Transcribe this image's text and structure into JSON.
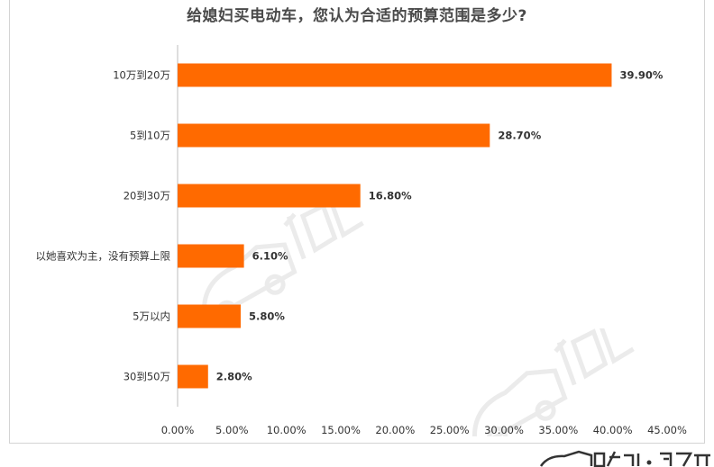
{
  "chart_data": {
    "type": "bar",
    "orientation": "horizontal",
    "title": "给媳妇买电动车，您认为合适的预算范围是多少?",
    "categories": [
      "10万到20万",
      "5到10万",
      "20到30万",
      "以她喜欢为主，没有预算上限",
      "5万以内",
      "30到50万"
    ],
    "values": [
      39.9,
      28.7,
      16.8,
      6.1,
      5.8,
      2.8
    ],
    "value_labels": [
      "39.90%",
      "28.70%",
      "16.80%",
      "6.10%",
      "5.80%",
      "2.80%"
    ],
    "xlim": [
      0,
      45
    ],
    "xticks": [
      0,
      5,
      10,
      15,
      20,
      25,
      30,
      35,
      40,
      45
    ],
    "xtick_labels": [
      "0.00%",
      "5.00%",
      "10.00%",
      "15.00%",
      "20.00%",
      "25.00%",
      "30.00%",
      "35.00%",
      "40.00%",
      "45.00%"
    ],
    "grid": false,
    "bar_color": "#ff6a00"
  }
}
